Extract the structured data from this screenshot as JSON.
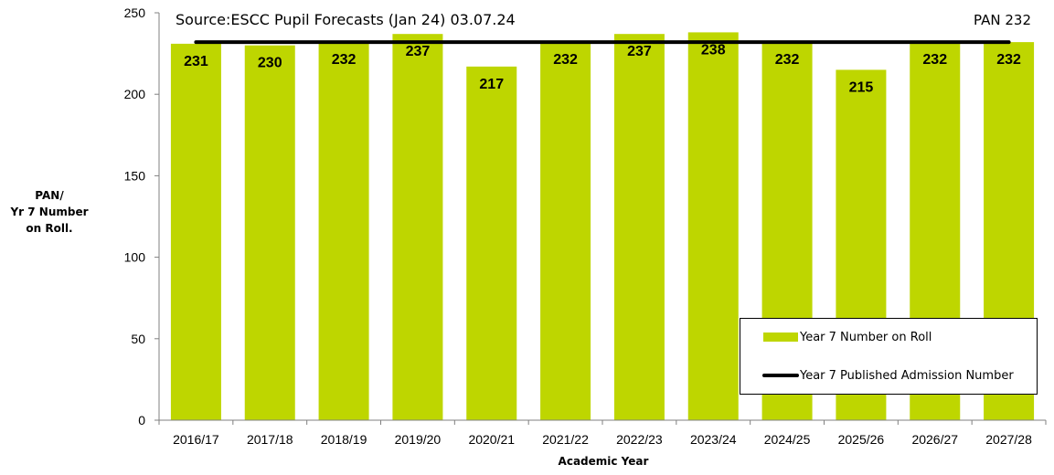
{
  "colors": {
    "bar": "#BED600",
    "pan_line": "#000000",
    "axis": "#808080"
  },
  "source_note": "Source:ESCC Pupil Forecasts (Jan 24) 03.07.24",
  "pan_annotation": "PAN 232",
  "axis_titles": {
    "y_line1": "PAN/",
    "y_line2": "Yr 7 Number",
    "y_line3": "on Roll.",
    "x": "Academic Year"
  },
  "legend": {
    "bar_label": "Year 7 Number on Roll",
    "line_label": "Year 7 Published Admission Number"
  },
  "chart_data": {
    "type": "bar",
    "categories": [
      "2016/17",
      "2017/18",
      "2018/19",
      "2019/20",
      "2020/21",
      "2021/22",
      "2022/23",
      "2023/24",
      "2024/25",
      "2025/26",
      "2026/27",
      "2027/28"
    ],
    "series": [
      {
        "name": "Year 7 Number on Roll",
        "type": "bar",
        "values": [
          231,
          230,
          232,
          237,
          217,
          232,
          237,
          238,
          232,
          215,
          232,
          232
        ]
      },
      {
        "name": "Year 7 Published Admission Number",
        "type": "line",
        "values": [
          232,
          232,
          232,
          232,
          232,
          232,
          232,
          232,
          232,
          232,
          232,
          232
        ]
      }
    ],
    "ylim": [
      0,
      250
    ],
    "yticks": [
      0,
      50,
      100,
      150,
      200,
      250
    ],
    "grid": false,
    "legend_position": "bottom-right"
  }
}
